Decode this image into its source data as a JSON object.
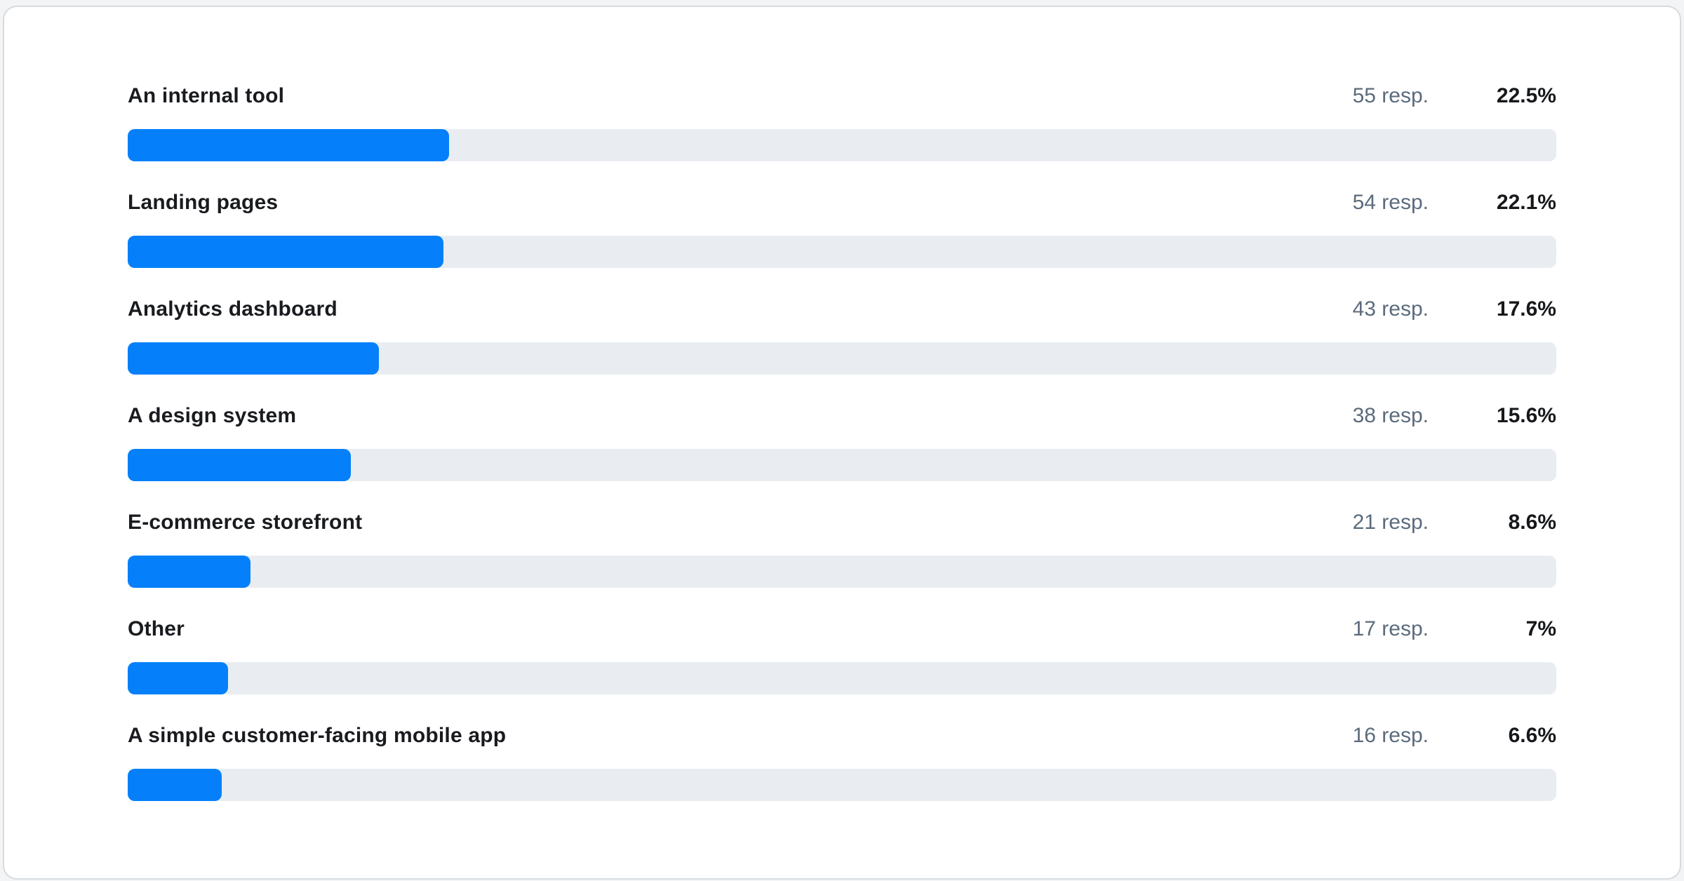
{
  "colors": {
    "bar_fill": "#0680fa",
    "bar_track": "#e9edf1",
    "label_text": "#191b1f",
    "count_text": "#5b6b7c",
    "percent_text": "#16181b",
    "card_background": "#ffffff",
    "card_border": "#d7dbe0"
  },
  "chart_data": {
    "type": "bar",
    "orientation": "horizontal",
    "title": "",
    "categories": [
      "An internal tool",
      "Landing pages",
      "Analytics dashboard",
      "A design system",
      "E-commerce storefront",
      "Other",
      "A simple customer-facing mobile app"
    ],
    "series": [
      {
        "name": "Responses",
        "values": [
          55,
          54,
          43,
          38,
          21,
          17,
          16
        ]
      },
      {
        "name": "Percentage",
        "values": [
          22.5,
          22.1,
          17.6,
          15.6,
          8.6,
          7,
          6.6
        ]
      }
    ],
    "value_axis_unit": "percent",
    "xlim": [
      0,
      100
    ],
    "grid": false,
    "legend": false,
    "bar_width_maps_to": "Percentage"
  },
  "rows": [
    {
      "label": "An internal tool",
      "responses_label": "55 resp.",
      "percent_label": "22.5%",
      "percent": 22.5
    },
    {
      "label": "Landing pages",
      "responses_label": "54 resp.",
      "percent_label": "22.1%",
      "percent": 22.1
    },
    {
      "label": "Analytics dashboard",
      "responses_label": "43 resp.",
      "percent_label": "17.6%",
      "percent": 17.6
    },
    {
      "label": "A design system",
      "responses_label": "38 resp.",
      "percent_label": "15.6%",
      "percent": 15.6
    },
    {
      "label": "E-commerce storefront",
      "responses_label": "21 resp.",
      "percent_label": "8.6%",
      "percent": 8.6
    },
    {
      "label": "Other",
      "responses_label": "17 resp.",
      "percent_label": "7%",
      "percent": 7
    },
    {
      "label": "A simple customer-facing mobile app",
      "responses_label": "16 resp.",
      "percent_label": "6.6%",
      "percent": 6.6
    }
  ]
}
